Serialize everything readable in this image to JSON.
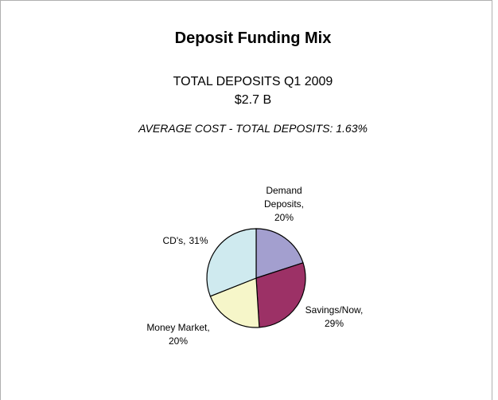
{
  "chart_data": {
    "type": "pie",
    "title": "Deposit Funding Mix",
    "subtitle": [
      "TOTAL DEPOSITS Q1 2009",
      "$2.7 B"
    ],
    "annotation": "AVERAGE COST - TOTAL DEPOSITS: 1.63%",
    "categories": [
      "Demand Deposits,",
      "Savings/Now,",
      "Money Market,",
      "CD's,"
    ],
    "values": [
      20,
      29,
      20,
      31
    ],
    "value_labels": [
      "20%",
      "29%",
      "20%",
      "31%"
    ],
    "colors": [
      "#a39fcf",
      "#9c3166",
      "#f6f6c9",
      "#cfeaef"
    ]
  }
}
